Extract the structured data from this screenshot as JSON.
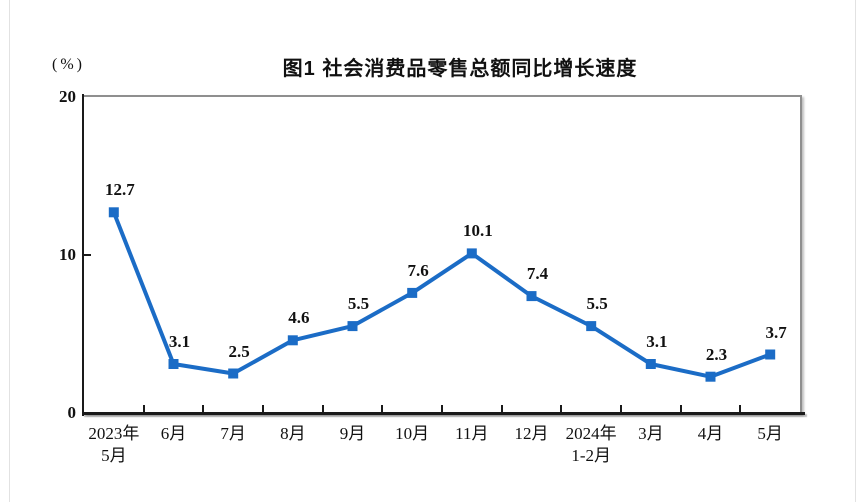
{
  "chart": {
    "title": "图1  社会消费品零售总额同比增长速度",
    "unit_label": "(%)"
  },
  "chart_data": {
    "type": "line",
    "title": "图1  社会消费品零售总额同比增长速度",
    "unit": "(%)",
    "categories": [
      "2023年\n5月",
      "6月",
      "7月",
      "8月",
      "9月",
      "10月",
      "11月",
      "12月",
      "2024年\n1-2月",
      "3月",
      "4月",
      "5月"
    ],
    "values": [
      12.7,
      3.1,
      2.5,
      4.6,
      5.5,
      7.6,
      10.1,
      7.4,
      5.5,
      3.1,
      2.3,
      3.7
    ],
    "yticks": [
      20,
      10,
      0
    ],
    "ylim": [
      0,
      20
    ],
    "grid": false,
    "legend": "none",
    "marker": "square",
    "colors": {
      "line": "#1b6cc6",
      "marker": "#1b6cc6",
      "axis": "#1a1a1a",
      "frame": "#8f8f8f",
      "label": "#111111"
    }
  }
}
